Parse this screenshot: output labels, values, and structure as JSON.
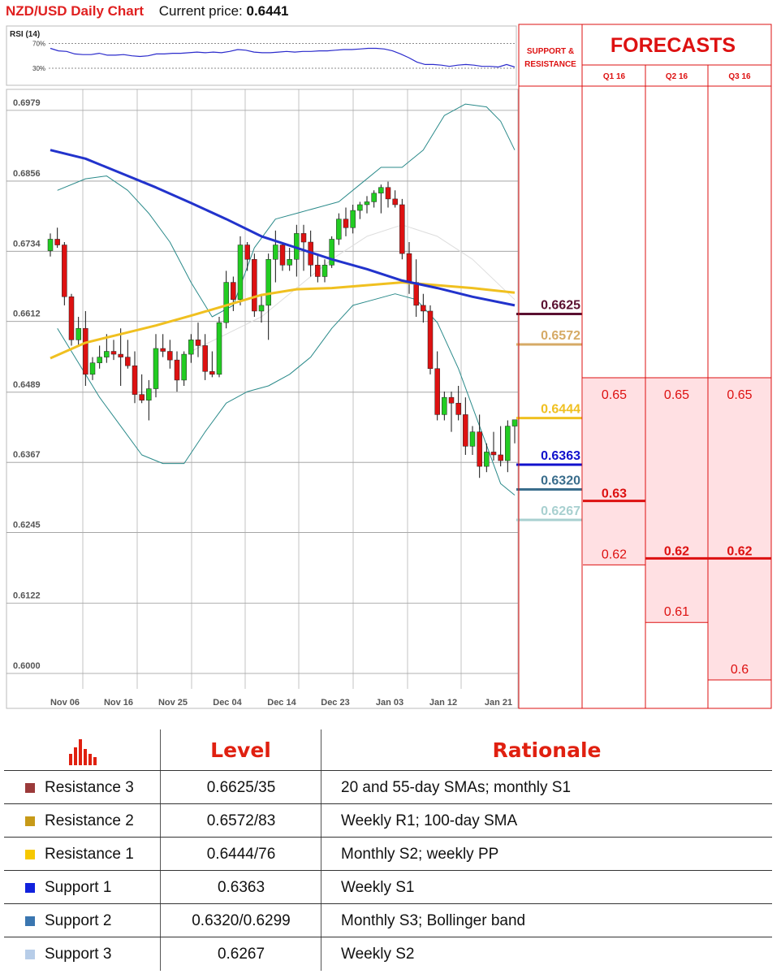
{
  "header": {
    "title": "NZD/USD Daily Chart",
    "price_label": "Current price:",
    "price_value": "0.6441"
  },
  "colors": {
    "accent_red": "#e02020",
    "candle_up": "#22cc22",
    "candle_down": "#dd1111",
    "sma_blue": "#2233cc",
    "sma_yellow": "#f0c020",
    "bollinger": "#2a8a8a"
  },
  "chart_data": [
    {
      "type": "line",
      "title": "RSI (14)",
      "levels": [
        "70%",
        "30%"
      ],
      "ylim": [
        0,
        100
      ],
      "values": [
        62,
        58,
        57,
        53,
        52,
        52,
        54,
        51,
        51,
        52,
        50,
        49,
        50,
        53,
        53,
        54,
        54,
        55,
        56,
        55,
        56,
        55,
        57,
        60,
        59,
        56,
        55,
        55,
        56,
        57,
        56,
        57,
        57,
        58,
        58,
        59,
        60,
        60,
        61,
        62,
        62,
        61,
        58,
        53,
        47,
        40,
        36,
        36,
        35,
        33,
        35,
        36,
        35,
        33,
        33,
        32,
        36,
        32
      ]
    },
    {
      "type": "candlestick",
      "title": "NZD/USD Daily Chart",
      "ylim": [
        0.6,
        0.7
      ],
      "y_ticks": [
        "0.6979",
        "0.6856",
        "0.6734",
        "0.6612",
        "0.6489",
        "0.6367",
        "0.6245",
        "0.6122",
        "0.6000"
      ],
      "x_ticks": [
        "Nov 06",
        "Nov 16",
        "Nov 25",
        "Dec 04",
        "Dec 14",
        "Dec 23",
        "Jan 03",
        "Jan 12",
        "Jan 21"
      ],
      "ohlc": [
        [
          0.6735,
          0.6765,
          0.6725,
          0.6755
        ],
        [
          0.6755,
          0.6775,
          0.674,
          0.6745
        ],
        [
          0.6745,
          0.675,
          0.664,
          0.6655
        ],
        [
          0.6655,
          0.666,
          0.657,
          0.658
        ],
        [
          0.658,
          0.662,
          0.657,
          0.66
        ],
        [
          0.66,
          0.663,
          0.65,
          0.652
        ],
        [
          0.652,
          0.655,
          0.651,
          0.654
        ],
        [
          0.654,
          0.657,
          0.653,
          0.655
        ],
        [
          0.655,
          0.659,
          0.654,
          0.656
        ],
        [
          0.656,
          0.658,
          0.6545,
          0.6555
        ],
        [
          0.6555,
          0.66,
          0.65,
          0.655
        ],
        [
          0.655,
          0.658,
          0.653,
          0.6535
        ],
        [
          0.6535,
          0.656,
          0.647,
          0.6485
        ],
        [
          0.6485,
          0.652,
          0.647,
          0.6475
        ],
        [
          0.6475,
          0.651,
          0.644,
          0.6495
        ],
        [
          0.6495,
          0.659,
          0.648,
          0.6565
        ],
        [
          0.6565,
          0.659,
          0.655,
          0.656
        ],
        [
          0.656,
          0.658,
          0.653,
          0.6545
        ],
        [
          0.6545,
          0.656,
          0.649,
          0.651
        ],
        [
          0.651,
          0.656,
          0.65,
          0.6555
        ],
        [
          0.6555,
          0.659,
          0.654,
          0.658
        ],
        [
          0.658,
          0.661,
          0.655,
          0.657
        ],
        [
          0.657,
          0.659,
          0.651,
          0.6525
        ],
        [
          0.6525,
          0.656,
          0.6515,
          0.652
        ],
        [
          0.652,
          0.662,
          0.6515,
          0.661
        ],
        [
          0.661,
          0.67,
          0.66,
          0.668
        ],
        [
          0.668,
          0.669,
          0.663,
          0.665
        ],
        [
          0.665,
          0.676,
          0.664,
          0.6745
        ],
        [
          0.6745,
          0.675,
          0.67,
          0.672
        ],
        [
          0.672,
          0.673,
          0.662,
          0.663
        ],
        [
          0.663,
          0.666,
          0.661,
          0.664
        ],
        [
          0.664,
          0.673,
          0.658,
          0.672
        ],
        [
          0.672,
          0.677,
          0.668,
          0.6745
        ],
        [
          0.6745,
          0.675,
          0.67,
          0.671
        ],
        [
          0.671,
          0.674,
          0.67,
          0.672
        ],
        [
          0.672,
          0.678,
          0.669,
          0.6765
        ],
        [
          0.6765,
          0.678,
          0.67,
          0.675
        ],
        [
          0.675,
          0.677,
          0.669,
          0.671
        ],
        [
          0.671,
          0.673,
          0.668,
          0.669
        ],
        [
          0.669,
          0.672,
          0.668,
          0.671
        ],
        [
          0.671,
          0.676,
          0.6705,
          0.6755
        ],
        [
          0.6755,
          0.68,
          0.6745,
          0.679
        ],
        [
          0.679,
          0.681,
          0.676,
          0.6775
        ],
        [
          0.6775,
          0.6815,
          0.6765,
          0.6805
        ],
        [
          0.6805,
          0.682,
          0.679,
          0.6815
        ],
        [
          0.6815,
          0.683,
          0.68,
          0.682
        ],
        [
          0.682,
          0.684,
          0.681,
          0.6835
        ],
        [
          0.6835,
          0.685,
          0.68,
          0.6845
        ],
        [
          0.6845,
          0.6855,
          0.681,
          0.6825
        ],
        [
          0.6825,
          0.684,
          0.681,
          0.6815
        ],
        [
          0.6815,
          0.6825,
          0.672,
          0.673
        ],
        [
          0.673,
          0.675,
          0.666,
          0.668
        ],
        [
          0.668,
          0.672,
          0.662,
          0.664
        ],
        [
          0.664,
          0.666,
          0.661,
          0.663
        ],
        [
          0.663,
          0.664,
          0.652,
          0.653
        ],
        [
          0.653,
          0.656,
          0.644,
          0.645
        ],
        [
          0.645,
          0.649,
          0.644,
          0.648
        ],
        [
          0.648,
          0.649,
          0.642,
          0.647
        ],
        [
          0.647,
          0.65,
          0.644,
          0.645
        ],
        [
          0.645,
          0.648,
          0.638,
          0.6395
        ],
        [
          0.6395,
          0.643,
          0.638,
          0.642
        ],
        [
          0.642,
          0.645,
          0.634,
          0.636
        ],
        [
          0.636,
          0.64,
          0.635,
          0.6385
        ],
        [
          0.6385,
          0.642,
          0.637,
          0.638
        ],
        [
          0.638,
          0.643,
          0.636,
          0.637
        ],
        [
          0.637,
          0.644,
          0.635,
          0.643
        ],
        [
          0.643,
          0.644,
          0.64,
          0.6441
        ]
      ],
      "sma_blue": [
        [
          0,
          0.691
        ],
        [
          5,
          0.6895
        ],
        [
          10,
          0.687
        ],
        [
          15,
          0.6845
        ],
        [
          20,
          0.6818
        ],
        [
          25,
          0.679
        ],
        [
          30,
          0.676
        ],
        [
          35,
          0.674
        ],
        [
          40,
          0.672
        ],
        [
          45,
          0.6703
        ],
        [
          50,
          0.6683
        ],
        [
          55,
          0.667
        ],
        [
          60,
          0.6655
        ],
        [
          66,
          0.664
        ]
      ],
      "sma_yellow": [
        [
          0,
          0.6548
        ],
        [
          5,
          0.6575
        ],
        [
          10,
          0.659
        ],
        [
          15,
          0.6605
        ],
        [
          20,
          0.6622
        ],
        [
          25,
          0.664
        ],
        [
          30,
          0.6658
        ],
        [
          35,
          0.6668
        ],
        [
          40,
          0.667
        ],
        [
          45,
          0.6675
        ],
        [
          50,
          0.668
        ],
        [
          55,
          0.6675
        ],
        [
          60,
          0.667
        ],
        [
          66,
          0.6662
        ]
      ],
      "bollinger_upper": [
        [
          1,
          0.684
        ],
        [
          5,
          0.686
        ],
        [
          8,
          0.6865
        ],
        [
          11,
          0.684
        ],
        [
          14,
          0.68
        ],
        [
          17,
          0.675
        ],
        [
          20,
          0.668
        ],
        [
          23,
          0.662
        ],
        [
          26,
          0.664
        ],
        [
          29,
          0.674
        ],
        [
          32,
          0.679
        ],
        [
          35,
          0.68
        ],
        [
          38,
          0.681
        ],
        [
          41,
          0.682
        ],
        [
          44,
          0.685
        ],
        [
          47,
          0.688
        ],
        [
          50,
          0.688
        ],
        [
          53,
          0.691
        ],
        [
          56,
          0.697
        ],
        [
          59,
          0.699
        ],
        [
          62,
          0.6985
        ],
        [
          64,
          0.696
        ],
        [
          66,
          0.691
        ]
      ],
      "bollinger_lower": [
        [
          1,
          0.66
        ],
        [
          4,
          0.654
        ],
        [
          7,
          0.648
        ],
        [
          10,
          0.643
        ],
        [
          13,
          0.638
        ],
        [
          16,
          0.6365
        ],
        [
          19,
          0.6365
        ],
        [
          22,
          0.642
        ],
        [
          25,
          0.647
        ],
        [
          28,
          0.649
        ],
        [
          31,
          0.65
        ],
        [
          34,
          0.652
        ],
        [
          37,
          0.655
        ],
        [
          40,
          0.66
        ],
        [
          43,
          0.664
        ],
        [
          46,
          0.665
        ],
        [
          49,
          0.666
        ],
        [
          52,
          0.665
        ],
        [
          55,
          0.661
        ],
        [
          58,
          0.653
        ],
        [
          61,
          0.643
        ],
        [
          64,
          0.633
        ],
        [
          66,
          0.631
        ]
      ],
      "bollinger_mid": [
        [
          20,
          0.656
        ],
        [
          25,
          0.659
        ],
        [
          30,
          0.662
        ],
        [
          35,
          0.667
        ],
        [
          40,
          0.672
        ],
        [
          45,
          0.676
        ],
        [
          50,
          0.678
        ],
        [
          55,
          0.676
        ],
        [
          60,
          0.672
        ],
        [
          66,
          0.665
        ]
      ],
      "support_resistance": [
        {
          "label": "0.6625",
          "value": 0.6625,
          "color": "#5a1030"
        },
        {
          "label": "0.6572",
          "value": 0.6572,
          "color": "#d6aa66"
        },
        {
          "label": "0.6444",
          "value": 0.6444,
          "color": "#f0c020"
        },
        {
          "label": "0.6363",
          "value": 0.6363,
          "color": "#1111cc"
        },
        {
          "label": "0.6320",
          "value": 0.632,
          "color": "#3a6d8c"
        },
        {
          "label": "0.6267",
          "value": 0.6267,
          "color": "#a8d0d0"
        }
      ]
    }
  ],
  "forecasts": {
    "panel_label_line1": "SUPPORT &",
    "panel_label_line2": "RESISTANCE",
    "title": "FORECASTS",
    "quarters": [
      {
        "label": "Q1 16",
        "high": "0.65",
        "mid": "0.63",
        "low": "0.62",
        "mid_value": 0.63,
        "bold": "0.63",
        "low_value": 0.62
      },
      {
        "label": "Q2 16",
        "high": "0.65",
        "mid": "0.62",
        "low": "0.61",
        "mid_value": 0.62,
        "bold": "0.62",
        "low_value": 0.61
      },
      {
        "label": "Q3 16",
        "high": "0.65",
        "mid": "0.62",
        "low": "0.6",
        "mid_value": 0.62,
        "bold": "0.62",
        "low_value": 0.6
      }
    ]
  },
  "table": {
    "header_level": "Level",
    "header_rationale": "Rationale",
    "rows": [
      {
        "name": "Resistance 3",
        "level": "0.6625/35",
        "rationale": "20 and 55-day SMAs; monthly S1",
        "color": "#9b3a3a"
      },
      {
        "name": "Resistance 2",
        "level": "0.6572/83",
        "rationale": "Weekly R1; 100-day SMA",
        "color": "#c79a18"
      },
      {
        "name": "Resistance 1",
        "level": "0.6444/76",
        "rationale": "Monthly S2; weekly PP",
        "color": "#f6c800"
      },
      {
        "name": "Support 1",
        "level": "0.6363",
        "rationale": "Weekly S1",
        "color": "#1122dd"
      },
      {
        "name": "Support 2",
        "level": "0.6320/0.6299",
        "rationale": "Monthly S3; Bollinger band",
        "color": "#3a76b0"
      },
      {
        "name": "Support 3",
        "level": "0.6267",
        "rationale": "Weekly S2",
        "color": "#b7cde8"
      }
    ]
  }
}
